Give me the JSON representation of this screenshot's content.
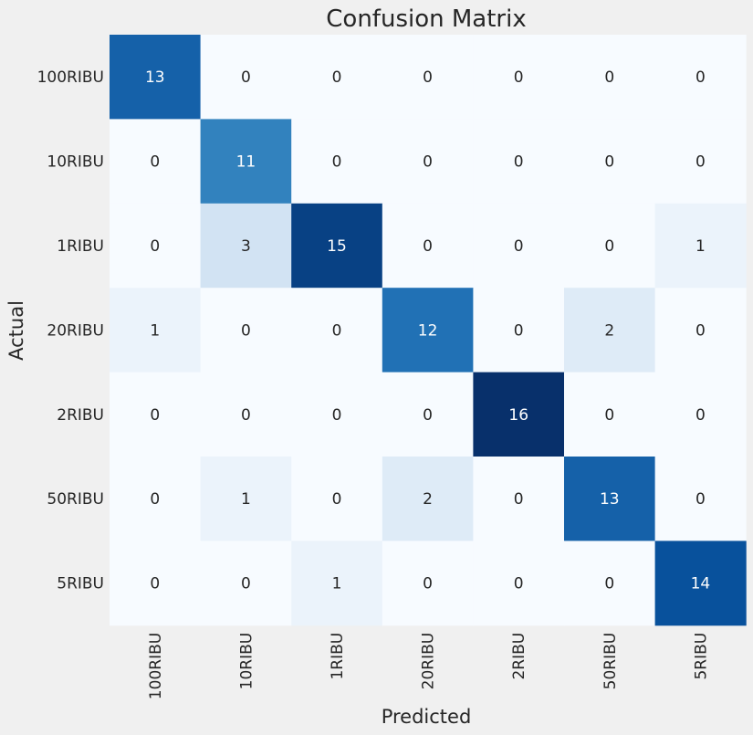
{
  "chart_data": {
    "type": "heatmap",
    "title": "Confusion Matrix",
    "xlabel": "Predicted",
    "ylabel": "Actual",
    "x_categories": [
      "100RIBU",
      "10RIBU",
      "1RIBU",
      "20RIBU",
      "2RIBU",
      "50RIBU",
      "5RIBU"
    ],
    "y_categories": [
      "100RIBU",
      "10RIBU",
      "1RIBU",
      "20RIBU",
      "2RIBU",
      "50RIBU",
      "5RIBU"
    ],
    "values": [
      [
        13,
        0,
        0,
        0,
        0,
        0,
        0
      ],
      [
        0,
        11,
        0,
        0,
        0,
        0,
        0
      ],
      [
        0,
        3,
        15,
        0,
        0,
        0,
        1
      ],
      [
        1,
        0,
        0,
        12,
        0,
        2,
        0
      ],
      [
        0,
        0,
        0,
        0,
        16,
        0,
        0
      ],
      [
        0,
        1,
        0,
        2,
        0,
        13,
        0
      ],
      [
        0,
        0,
        1,
        0,
        0,
        0,
        14
      ]
    ],
    "value_range": [
      0,
      16
    ],
    "colormap": "Blues",
    "colorbar": false,
    "grid": false
  }
}
